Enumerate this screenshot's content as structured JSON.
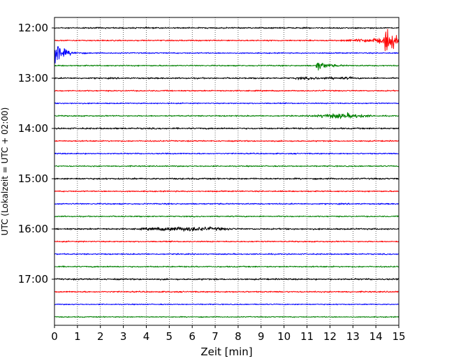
{
  "chart_data": {
    "type": "line",
    "title": "",
    "xlabel": "Zeit  [min]",
    "ylabel": "UTC (Lokalzeit = UTC + 02:00)",
    "xlim": [
      0,
      15
    ],
    "x_ticks": [
      "0",
      "1",
      "2",
      "3",
      "4",
      "5",
      "6",
      "7",
      "8",
      "9",
      "10",
      "11",
      "12",
      "13",
      "14",
      "15"
    ],
    "y_ticks": [
      "12:00",
      "13:00",
      "14:00",
      "15:00",
      "16:00",
      "17:00"
    ],
    "grid": "vertical dotted at each minute",
    "trace_colors": [
      "#000000",
      "#ff0000",
      "#0000ff",
      "#008000"
    ],
    "traces": [
      {
        "start": "12:00",
        "color": "#000000",
        "activity": "background noise"
      },
      {
        "start": "12:15",
        "color": "#ff0000",
        "activity": "increasing amplitude from 12.5 min, large event at 14.5 min"
      },
      {
        "start": "12:30",
        "color": "#0000ff",
        "activity": "large event at 0 min decaying until 1.5 min"
      },
      {
        "start": "12:45",
        "color": "#008000",
        "activity": "event at 11.5 min decaying until 13 min"
      },
      {
        "start": "13:00",
        "color": "#000000",
        "activity": "background noise"
      },
      {
        "start": "13:15",
        "color": "#ff0000",
        "activity": "background noise"
      },
      {
        "start": "13:30",
        "color": "#0000ff",
        "activity": "background noise"
      },
      {
        "start": "13:45",
        "color": "#008000",
        "activity": "burst between 11 and 14 min"
      },
      {
        "start": "14:00",
        "color": "#000000",
        "activity": "background noise"
      },
      {
        "start": "14:15",
        "color": "#ff0000",
        "activity": "background noise"
      },
      {
        "start": "14:30",
        "color": "#0000ff",
        "activity": "background noise"
      },
      {
        "start": "14:45",
        "color": "#008000",
        "activity": "background noise"
      },
      {
        "start": "15:00",
        "color": "#000000",
        "activity": "background noise"
      },
      {
        "start": "15:15",
        "color": "#ff0000",
        "activity": "background noise"
      },
      {
        "start": "15:30",
        "color": "#0000ff",
        "activity": "background noise"
      },
      {
        "start": "15:45",
        "color": "#008000",
        "activity": "background noise"
      },
      {
        "start": "16:00",
        "color": "#000000",
        "activity": "burst between 3.5 and 8 min"
      },
      {
        "start": "16:15",
        "color": "#ff0000",
        "activity": "background noise"
      },
      {
        "start": "16:30",
        "color": "#0000ff",
        "activity": "background noise"
      },
      {
        "start": "16:45",
        "color": "#008000",
        "activity": "background noise"
      },
      {
        "start": "17:00",
        "color": "#000000",
        "activity": "background noise"
      },
      {
        "start": "17:15",
        "color": "#ff0000",
        "activity": "background noise"
      },
      {
        "start": "17:30",
        "color": "#0000ff",
        "activity": "background noise"
      },
      {
        "start": "17:45",
        "color": "#008000",
        "activity": "background noise"
      }
    ]
  }
}
